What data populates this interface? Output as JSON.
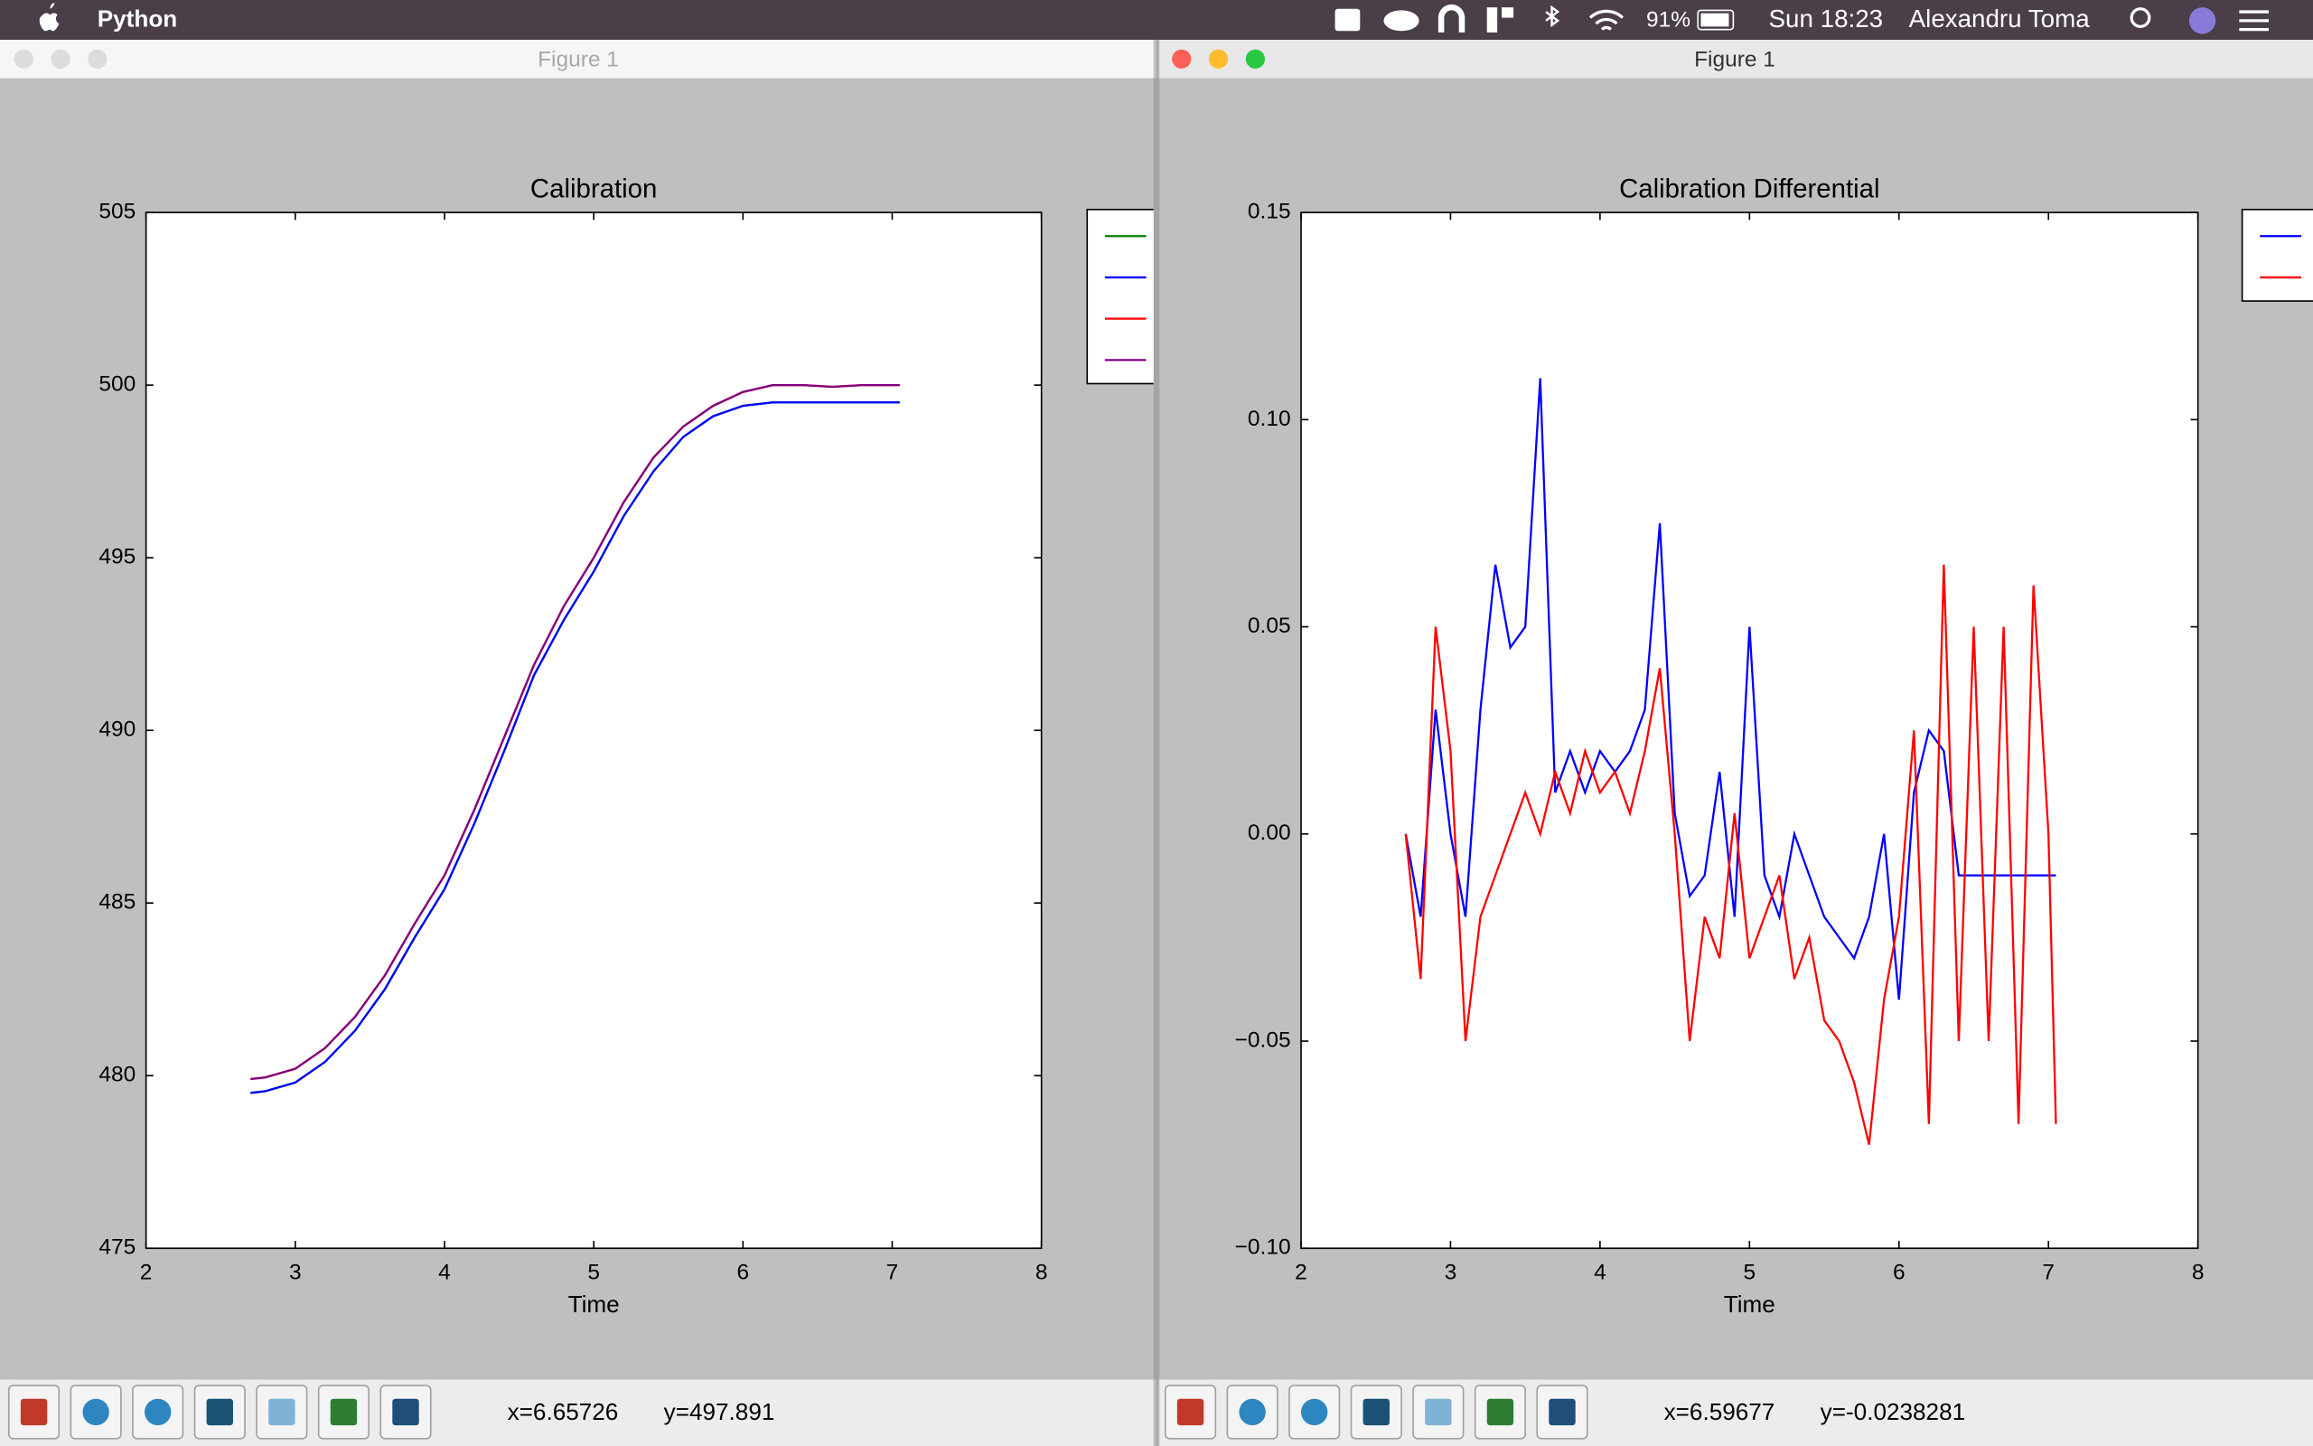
{
  "menubar": {
    "app": "Python",
    "battery": "91%",
    "clock": "Sun 18:23",
    "user": "Alexandru Toma"
  },
  "windows": [
    {
      "title": "Figure 1",
      "status_x": "x=6.65726",
      "status_y": "y=497.891"
    },
    {
      "title": "Figure 1",
      "status_x": "x=6.59677",
      "status_y": "y=-0.0238281"
    }
  ],
  "chart_data": [
    {
      "type": "line",
      "title": "Calibration",
      "x_label": "Time",
      "x": [
        2.7,
        2.8,
        3.0,
        3.2,
        3.4,
        3.6,
        3.8,
        4.0,
        4.2,
        4.4,
        4.6,
        4.8,
        5.0,
        5.2,
        5.4,
        5.6,
        5.8,
        6.0,
        6.2,
        6.4,
        6.6,
        6.8,
        7.05
      ],
      "series": [
        {
          "color": "#008000",
          "values": [
            479.5,
            479.55,
            479.8,
            480.4,
            481.3,
            482.5,
            484.0,
            485.4,
            487.3,
            489.4,
            491.6,
            493.2,
            494.6,
            496.2,
            497.5,
            498.5,
            499.1,
            499.4,
            499.5,
            499.5,
            499.5,
            499.5,
            499.5
          ]
        },
        {
          "color": "#0000ff",
          "values": [
            479.5,
            479.55,
            479.8,
            480.4,
            481.3,
            482.5,
            484.0,
            485.4,
            487.3,
            489.4,
            491.6,
            493.2,
            494.6,
            496.2,
            497.5,
            498.5,
            499.1,
            499.4,
            499.5,
            499.5,
            499.5,
            499.5,
            499.5
          ]
        },
        {
          "color": "#ff0000",
          "values": [
            479.9,
            479.95,
            480.2,
            480.8,
            481.7,
            482.9,
            484.4,
            485.8,
            487.7,
            489.8,
            491.9,
            493.6,
            495.0,
            496.6,
            497.9,
            498.8,
            499.4,
            499.8,
            500.0,
            500.0,
            499.95,
            500.0,
            500.0
          ]
        },
        {
          "color": "#800080",
          "values": [
            479.9,
            479.95,
            480.2,
            480.8,
            481.7,
            482.9,
            484.4,
            485.8,
            487.7,
            489.8,
            491.9,
            493.6,
            495.0,
            496.6,
            497.9,
            498.8,
            499.4,
            499.8,
            500.0,
            500.0,
            499.95,
            500.0,
            500.0
          ]
        }
      ],
      "xlim": [
        2,
        8
      ],
      "xticks": [
        2,
        3,
        4,
        5,
        6,
        7,
        8
      ],
      "ylim": [
        475,
        505
      ],
      "yticks": [
        475,
        480,
        485,
        490,
        495,
        500,
        505
      ]
    },
    {
      "type": "line",
      "title": "Calibration Differential",
      "x_label": "Time",
      "x": [
        2.7,
        2.8,
        2.9,
        3.0,
        3.1,
        3.2,
        3.3,
        3.4,
        3.5,
        3.6,
        3.7,
        3.8,
        3.9,
        4.0,
        4.1,
        4.2,
        4.3,
        4.4,
        4.5,
        4.6,
        4.7,
        4.8,
        4.9,
        5.0,
        5.1,
        5.2,
        5.3,
        5.4,
        5.5,
        5.6,
        5.7,
        5.8,
        5.9,
        6.0,
        6.1,
        6.2,
        6.3,
        6.4,
        6.5,
        6.6,
        6.7,
        6.8,
        6.9,
        7.0,
        7.05
      ],
      "series": [
        {
          "color": "#0000ff",
          "values": [
            0.0,
            -0.02,
            0.03,
            0.0,
            -0.02,
            0.03,
            0.065,
            0.045,
            0.05,
            0.11,
            0.01,
            0.02,
            0.01,
            0.02,
            0.015,
            0.02,
            0.03,
            0.075,
            0.005,
            -0.015,
            -0.01,
            0.015,
            -0.02,
            0.05,
            -0.01,
            -0.02,
            0.0,
            -0.01,
            -0.02,
            -0.025,
            -0.03,
            -0.02,
            0.0,
            -0.04,
            0.01,
            0.025,
            0.02,
            -0.01,
            -0.01,
            -0.01,
            -0.01,
            -0.01,
            -0.01,
            -0.01,
            -0.01
          ]
        },
        {
          "color": "#ff0000",
          "values": [
            0.0,
            -0.035,
            0.05,
            0.02,
            -0.05,
            -0.02,
            -0.01,
            0.0,
            0.01,
            0.0,
            0.015,
            0.005,
            0.02,
            0.01,
            0.015,
            0.005,
            0.02,
            0.04,
            0.0,
            -0.05,
            -0.02,
            -0.03,
            0.005,
            -0.03,
            -0.02,
            -0.01,
            -0.035,
            -0.025,
            -0.045,
            -0.05,
            -0.06,
            -0.075,
            -0.04,
            -0.02,
            0.025,
            -0.07,
            0.065,
            -0.05,
            0.05,
            -0.05,
            0.05,
            -0.07,
            0.06,
            0.0,
            -0.07
          ]
        }
      ],
      "xlim": [
        2,
        8
      ],
      "xticks": [
        2,
        3,
        4,
        5,
        6,
        7,
        8
      ],
      "ylim": [
        -0.1,
        0.15
      ],
      "yticks": [
        {
          "value": -0.1,
          "label": "−0.10"
        },
        {
          "value": -0.05,
          "label": "−0.05"
        },
        {
          "value": 0,
          "label": "0.00"
        },
        0.05,
        {
          "value": 0.1,
          "label": "0.10"
        },
        0.15
      ]
    }
  ]
}
